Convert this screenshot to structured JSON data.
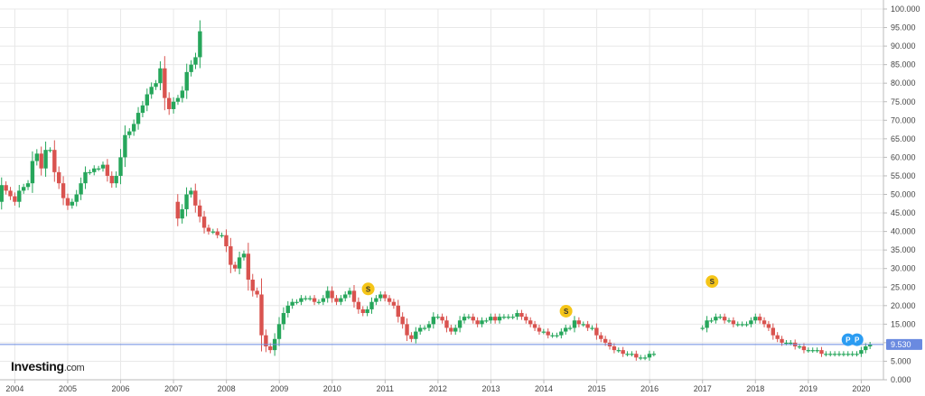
{
  "brand": {
    "name": "Investing",
    "domain": ".com"
  },
  "chart_data": {
    "type": "candlestick",
    "ylim": [
      0,
      100
    ],
    "y_ticks": [
      "0.000",
      "5.000",
      "10.000",
      "15.000",
      "20.000",
      "25.000",
      "30.000",
      "35.000",
      "40.000",
      "45.000",
      "50.000",
      "55.000",
      "60.000",
      "65.000",
      "70.000",
      "75.000",
      "80.000",
      "85.000",
      "90.000",
      "95.000",
      "100.000"
    ],
    "x_ticks": [
      "2004",
      "2005",
      "2006",
      "2007",
      "2008",
      "2009",
      "2010",
      "2011",
      "2012",
      "2013",
      "2014",
      "2015",
      "2016",
      "2017",
      "2018",
      "2019",
      "2020"
    ],
    "xlim": [
      2003.72,
      2020.42
    ],
    "current_price": {
      "label": "9.530",
      "value": 9.53
    },
    "colors": {
      "up": "#26a65b",
      "down": "#d9534f",
      "price_line": "#6a8ae0",
      "dividend": "#f5c518",
      "marker": "#2b9cf2",
      "grid": "#e8e8e8"
    },
    "events": [
      {
        "type": "dividend",
        "label": "S",
        "x": 2010.68,
        "y": 24.5
      },
      {
        "type": "dividend",
        "label": "S",
        "x": 2014.42,
        "y": 18.5
      },
      {
        "type": "dividend",
        "label": "S",
        "x": 2017.18,
        "y": 26.5
      },
      {
        "type": "marker",
        "label": "P",
        "x": 2019.75,
        "y": 10.8
      },
      {
        "type": "marker",
        "label": "P",
        "x": 2019.92,
        "y": 10.8
      }
    ],
    "closes": [
      [
        52.5,
        51,
        49.5,
        48,
        51,
        52,
        53,
        59,
        61,
        57,
        62,
        62,
        56,
        53,
        49,
        47,
        48,
        50,
        53,
        56,
        56,
        57,
        57,
        58,
        55,
        53,
        55,
        60,
        66,
        67,
        69,
        72,
        74,
        77,
        79,
        80,
        84,
        76,
        73,
        75,
        76,
        78,
        83,
        85,
        87,
        94
      ],
      [
        43.5,
        46,
        50,
        51,
        47,
        44,
        41,
        40,
        40,
        39,
        39,
        36,
        31,
        30,
        33,
        34,
        27,
        24,
        23,
        12,
        9,
        8,
        11,
        15,
        18,
        20,
        21,
        21,
        22,
        22,
        22,
        21,
        21,
        22,
        24,
        22,
        21,
        22,
        23,
        24,
        21,
        19,
        18,
        19,
        21,
        22,
        23,
        22,
        21,
        20,
        17,
        15,
        12,
        11,
        13,
        14,
        14,
        15,
        17,
        17,
        16,
        14,
        13,
        14,
        16,
        17,
        17,
        16,
        15,
        16,
        16,
        17,
        16,
        17,
        17,
        17,
        17,
        18,
        17,
        16,
        15,
        14,
        13,
        13,
        12,
        12,
        12,
        13,
        14,
        14,
        16,
        15,
        15,
        14,
        14,
        12,
        11,
        10,
        9,
        8,
        8,
        7,
        7,
        7,
        6,
        6,
        6,
        7,
        7
      ]
    ],
    "segment_starts": [
      2003.75,
      2007.08
    ],
    "segment2b_start": 2017.0,
    "closes_b": [
      14,
      16,
      16,
      17,
      17,
      16,
      16,
      15,
      15,
      15,
      15,
      16,
      17,
      16,
      15,
      14,
      12,
      11,
      10,
      10,
      10,
      9,
      9,
      8,
      8,
      8,
      8,
      7,
      7,
      7,
      7,
      7,
      7,
      7,
      7,
      7,
      8,
      9,
      9.5
    ]
  }
}
